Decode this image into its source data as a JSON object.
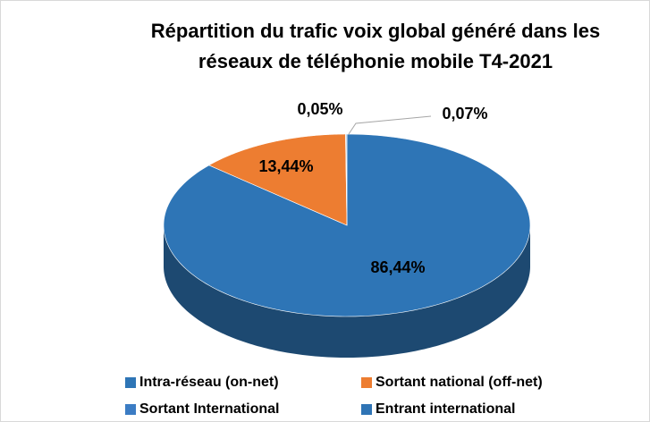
{
  "chart_data": {
    "type": "pie",
    "title": "Répartition du trafic voix global généré dans les réseaux de téléphonie mobile T4-2021",
    "categories": [
      "Intra-réseau (on-net)",
      "Sortant national  (off-net)",
      "Sortant International",
      "Entrant international"
    ],
    "values": [
      86.44,
      13.44,
      0.05,
      0.07
    ],
    "value_labels": [
      "86,44%",
      "13,44%",
      "0,05%",
      "0,07%"
    ],
    "colors": [
      "#2e75b6",
      "#ed7d31",
      "#3b7cc4",
      "#2f74b5"
    ]
  }
}
